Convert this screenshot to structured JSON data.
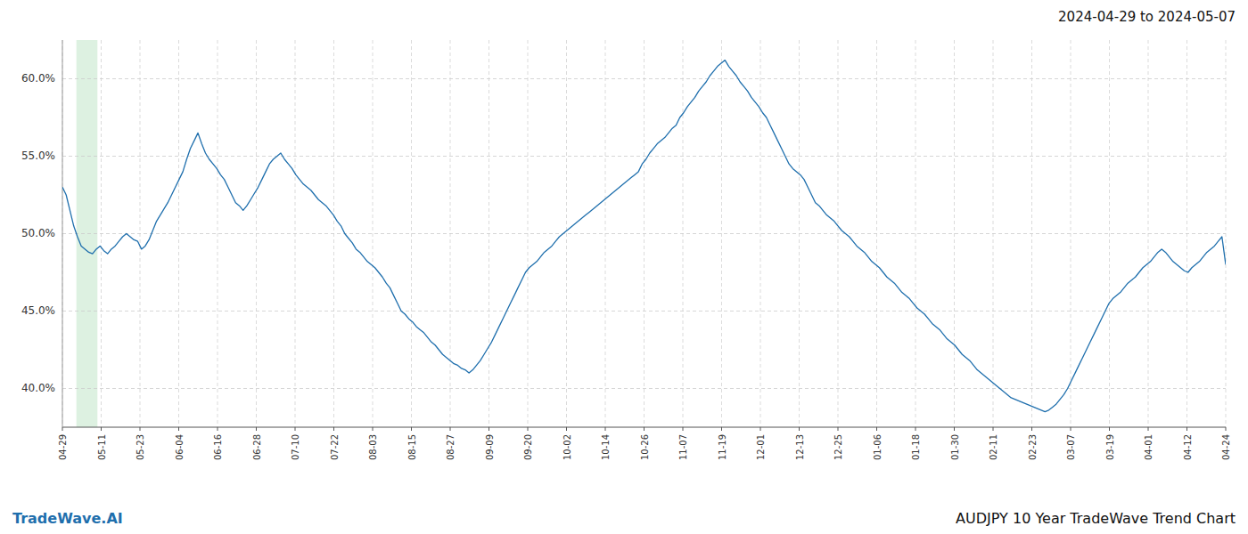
{
  "chart_data": {
    "type": "line",
    "title": "2024-04-29 to 2024-05-07",
    "annotations": [
      {
        "text": "TradeWave.AI",
        "color": "#1f6fad"
      },
      {
        "text": "AUDJPY 10 Year TradeWave Trend Chart"
      }
    ],
    "color": "#1f6fad",
    "grid": true,
    "spans": [
      {
        "x": [
          3.72,
          9.3
        ],
        "color": "#d4edda"
      }
    ],
    "ylim": [
      0.375,
      0.625
    ],
    "yticks": [
      {
        "value": 0.4,
        "label": "40.0%"
      },
      {
        "value": 0.45,
        "label": "45.0%"
      },
      {
        "value": 0.5,
        "label": "50.0%"
      },
      {
        "value": 0.55,
        "label": "55.0%"
      },
      {
        "value": 0.6,
        "label": "60.0%"
      }
    ],
    "xlim": [
      0,
      309
    ],
    "xticks": [
      {
        "value": 0,
        "label": "04-29"
      },
      {
        "value": 10.3,
        "label": "05-11"
      },
      {
        "value": 20.6,
        "label": "05-23"
      },
      {
        "value": 30.9,
        "label": "06-04"
      },
      {
        "value": 41.2,
        "label": "06-16"
      },
      {
        "value": 51.5,
        "label": "06-28"
      },
      {
        "value": 61.8,
        "label": "07-10"
      },
      {
        "value": 72.1,
        "label": "07-22"
      },
      {
        "value": 82.4,
        "label": "08-03"
      },
      {
        "value": 92.7,
        "label": "08-15"
      },
      {
        "value": 103,
        "label": "08-27"
      },
      {
        "value": 113.3,
        "label": "09-09"
      },
      {
        "value": 123.6,
        "label": "09-20"
      },
      {
        "value": 133.9,
        "label": "10-02"
      },
      {
        "value": 144.2,
        "label": "10-14"
      },
      {
        "value": 154.5,
        "label": "10-26"
      },
      {
        "value": 164.8,
        "label": "11-07"
      },
      {
        "value": 175.1,
        "label": "11-19"
      },
      {
        "value": 185.4,
        "label": "12-01"
      },
      {
        "value": 195.7,
        "label": "12-13"
      },
      {
        "value": 206,
        "label": "12-25"
      },
      {
        "value": 216.3,
        "label": "01-06"
      },
      {
        "value": 226.6,
        "label": "01-18"
      },
      {
        "value": 236.9,
        "label": "01-30"
      },
      {
        "value": 247.2,
        "label": "02-11"
      },
      {
        "value": 257.5,
        "label": "02-23"
      },
      {
        "value": 267.8,
        "label": "03-07"
      },
      {
        "value": 278.1,
        "label": "03-19"
      },
      {
        "value": 288.4,
        "label": "04-01"
      },
      {
        "value": 298.7,
        "label": "04-12"
      },
      {
        "value": 309,
        "label": "04-24"
      }
    ],
    "values": [
      0.53,
      0.525,
      0.515,
      0.505,
      0.498,
      0.492,
      0.49,
      0.488,
      0.487,
      0.49,
      0.492,
      0.489,
      0.487,
      0.49,
      0.492,
      0.495,
      0.498,
      0.5,
      0.498,
      0.496,
      0.495,
      0.49,
      0.492,
      0.496,
      0.502,
      0.508,
      0.512,
      0.516,
      0.52,
      0.525,
      0.53,
      0.535,
      0.54,
      0.548,
      0.555,
      0.56,
      0.565,
      0.558,
      0.552,
      0.548,
      0.545,
      0.542,
      0.538,
      0.535,
      0.53,
      0.525,
      0.52,
      0.518,
      0.515,
      0.518,
      0.522,
      0.526,
      0.53,
      0.535,
      0.54,
      0.545,
      0.548,
      0.55,
      0.552,
      0.548,
      0.545,
      0.542,
      0.538,
      0.535,
      0.532,
      0.53,
      0.528,
      0.525,
      0.522,
      0.52,
      0.518,
      0.515,
      0.512,
      0.508,
      0.505,
      0.5,
      0.497,
      0.494,
      0.49,
      0.488,
      0.485,
      0.482,
      0.48,
      0.478,
      0.475,
      0.472,
      0.468,
      0.465,
      0.46,
      0.455,
      0.45,
      0.448,
      0.445,
      0.443,
      0.44,
      0.438,
      0.436,
      0.433,
      0.43,
      0.428,
      0.425,
      0.422,
      0.42,
      0.418,
      0.416,
      0.415,
      0.413,
      0.412,
      0.41,
      0.412,
      0.415,
      0.418,
      0.422,
      0.426,
      0.43,
      0.435,
      0.44,
      0.445,
      0.45,
      0.455,
      0.46,
      0.465,
      0.47,
      0.475,
      0.478,
      0.48,
      0.482,
      0.485,
      0.488,
      0.49,
      0.492,
      0.495,
      0.498,
      0.5,
      0.502,
      0.504,
      0.506,
      0.508,
      0.51,
      0.512,
      0.514,
      0.516,
      0.518,
      0.52,
      0.522,
      0.524,
      0.526,
      0.528,
      0.53,
      0.532,
      0.534,
      0.536,
      0.538,
      0.54,
      0.545,
      0.548,
      0.552,
      0.555,
      0.558,
      0.56,
      0.562,
      0.565,
      0.568,
      0.57,
      0.575,
      0.578,
      0.582,
      0.585,
      0.588,
      0.592,
      0.595,
      0.598,
      0.602,
      0.605,
      0.608,
      0.61,
      0.612,
      0.608,
      0.605,
      0.602,
      0.598,
      0.595,
      0.592,
      0.588,
      0.585,
      0.582,
      0.578,
      0.575,
      0.57,
      0.565,
      0.56,
      0.555,
      0.55,
      0.545,
      0.542,
      0.54,
      0.538,
      0.535,
      0.53,
      0.525,
      0.52,
      0.518,
      0.515,
      0.512,
      0.51,
      0.508,
      0.505,
      0.502,
      0.5,
      0.498,
      0.495,
      0.492,
      0.49,
      0.488,
      0.485,
      0.482,
      0.48,
      0.478,
      0.475,
      0.472,
      0.47,
      0.468,
      0.465,
      0.462,
      0.46,
      0.458,
      0.455,
      0.452,
      0.45,
      0.448,
      0.445,
      0.442,
      0.44,
      0.438,
      0.435,
      0.432,
      0.43,
      0.428,
      0.425,
      0.422,
      0.42,
      0.418,
      0.415,
      0.412,
      0.41,
      0.408,
      0.406,
      0.404,
      0.402,
      0.4,
      0.398,
      0.396,
      0.394,
      0.393,
      0.392,
      0.391,
      0.39,
      0.389,
      0.388,
      0.387,
      0.386,
      0.385,
      0.386,
      0.388,
      0.39,
      0.393,
      0.396,
      0.4,
      0.405,
      0.41,
      0.415,
      0.42,
      0.425,
      0.43,
      0.435,
      0.44,
      0.445,
      0.45,
      0.455,
      0.458,
      0.46,
      0.462,
      0.465,
      0.468,
      0.47,
      0.472,
      0.475,
      0.478,
      0.48,
      0.482,
      0.485,
      0.488,
      0.49,
      0.488,
      0.485,
      0.482,
      0.48,
      0.478,
      0.476,
      0.475,
      0.478,
      0.48,
      0.482,
      0.485,
      0.488,
      0.49,
      0.492,
      0.495,
      0.498,
      0.48
    ]
  }
}
